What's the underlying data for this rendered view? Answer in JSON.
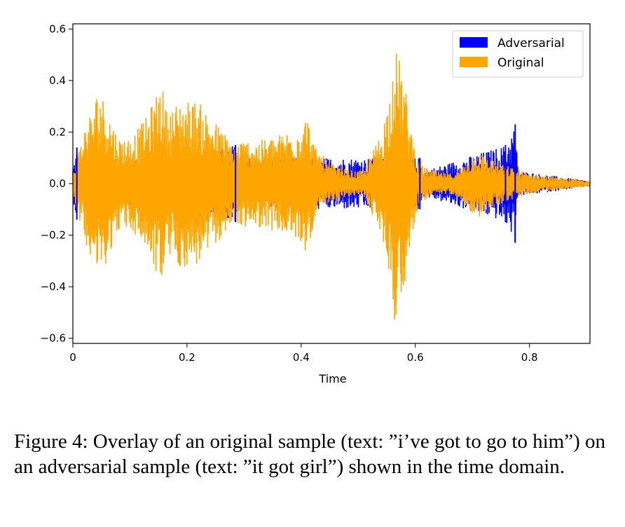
{
  "chart_data": {
    "type": "line",
    "xlabel": "Time",
    "ylabel": "",
    "xlim": [
      0,
      0.906
    ],
    "ylim": [
      -0.62,
      0.62
    ],
    "xticks": [
      0,
      0.2,
      0.4,
      0.6,
      0.8
    ],
    "xtick_labels": [
      "0",
      "0.2",
      "0.4",
      "0.6",
      "0.8"
    ],
    "yticks": [
      0.6,
      0.4,
      0.2,
      0.0,
      -0.2,
      -0.4,
      -0.6
    ],
    "ytick_labels": [
      "0.6",
      "0.4",
      "0.2",
      "0.0",
      "−0.2",
      "−0.4",
      "−0.6"
    ],
    "legend_position": "top-right",
    "series": [
      {
        "name": "Adversarial",
        "color": "#0000ff",
        "envelope_points": [
          [
            0.0,
            0.06
          ],
          [
            0.007,
            0.14
          ],
          [
            0.01,
            0.06
          ],
          [
            0.285,
            0.15
          ],
          [
            0.29,
            0.1
          ],
          [
            0.608,
            0.1
          ],
          [
            0.615,
            0.05
          ],
          [
            0.758,
            0.15
          ],
          [
            0.775,
            0.23
          ],
          [
            0.78,
            0.05
          ],
          [
            0.906,
            0.01
          ]
        ]
      },
      {
        "name": "Original",
        "color": "#ffa500",
        "envelope_points": [
          [
            0.0,
            0.04
          ],
          [
            0.02,
            0.22
          ],
          [
            0.035,
            0.3
          ],
          [
            0.045,
            0.38
          ],
          [
            0.06,
            0.3
          ],
          [
            0.08,
            0.18
          ],
          [
            0.1,
            0.18
          ],
          [
            0.13,
            0.26
          ],
          [
            0.155,
            0.4
          ],
          [
            0.165,
            0.28
          ],
          [
            0.19,
            0.33
          ],
          [
            0.22,
            0.32
          ],
          [
            0.25,
            0.24
          ],
          [
            0.28,
            0.16
          ],
          [
            0.3,
            0.17
          ],
          [
            0.33,
            0.17
          ],
          [
            0.36,
            0.19
          ],
          [
            0.39,
            0.22
          ],
          [
            0.41,
            0.27
          ],
          [
            0.425,
            0.14
          ],
          [
            0.45,
            0.08
          ],
          [
            0.49,
            0.05
          ],
          [
            0.51,
            0.05
          ],
          [
            0.52,
            0.1
          ],
          [
            0.54,
            0.2
          ],
          [
            0.555,
            0.35
          ],
          [
            0.562,
            0.55
          ],
          [
            0.57,
            0.5
          ],
          [
            0.58,
            0.42
          ],
          [
            0.59,
            0.25
          ],
          [
            0.605,
            0.08
          ],
          [
            0.63,
            0.05
          ],
          [
            0.66,
            0.04
          ],
          [
            0.675,
            0.05
          ],
          [
            0.69,
            0.09
          ],
          [
            0.71,
            0.14
          ],
          [
            0.72,
            0.11
          ],
          [
            0.74,
            0.09
          ],
          [
            0.76,
            0.07
          ],
          [
            0.8,
            0.04
          ],
          [
            0.85,
            0.025
          ],
          [
            0.906,
            0.01
          ]
        ]
      }
    ]
  },
  "caption": "Figure 4: Overlay of an original sample (text: ”i’ve got to go to him”) on an adversarial sample (text: ”it got girl”) shown in the time domain."
}
